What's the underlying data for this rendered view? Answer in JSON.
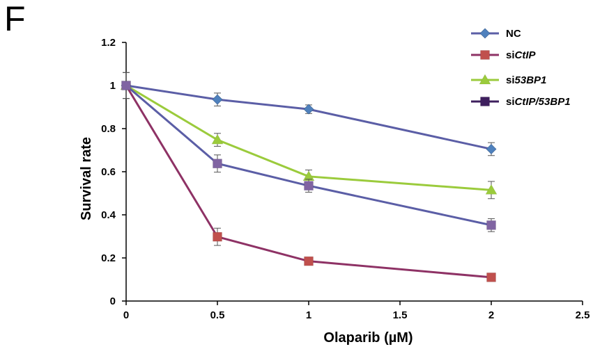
{
  "panel_label": "F",
  "chart_data": {
    "type": "line",
    "xlabel": "Olaparib (µM)",
    "ylabel": "Survival rate",
    "xlim": [
      0,
      2.5
    ],
    "ylim": [
      0,
      1.2
    ],
    "x_ticks": [
      "0",
      "0.5",
      "1",
      "1.5",
      "2",
      "2.5"
    ],
    "y_ticks": [
      "0",
      "0.2",
      "0.4",
      "0.6",
      "0.8",
      "1",
      "1.2"
    ],
    "x": [
      0,
      0.5,
      1,
      2
    ],
    "legend_position": "top-right",
    "series": [
      {
        "name": "NC",
        "prefix": "NC",
        "suffix": "",
        "marker": "diamond",
        "marker_color": "#4f81bd",
        "line_color": "#5b5ea6",
        "values": [
          1.0,
          0.935,
          0.89,
          0.705
        ],
        "errors": [
          0.06,
          0.03,
          0.02,
          0.03
        ]
      },
      {
        "name": "siCtIP",
        "prefix": "si",
        "suffix": "CtIP",
        "marker": "square",
        "marker_color": "#c0504d",
        "line_color": "#8e3265",
        "values": [
          1.0,
          0.298,
          0.185,
          0.11
        ],
        "errors": [
          0.06,
          0.04,
          0.015,
          0.01
        ]
      },
      {
        "name": "si53BP1",
        "prefix": "si",
        "suffix": "53BP1",
        "marker": "triangle",
        "marker_color": "#9bcb3c",
        "line_color": "#9bcb3c",
        "values": [
          1.0,
          0.748,
          0.578,
          0.515
        ],
        "errors": [
          0.06,
          0.03,
          0.03,
          0.04
        ]
      },
      {
        "name": "siCtIP/53BP1",
        "prefix": "si",
        "suffix": "CtIP/53BP1",
        "marker": "square",
        "marker_color": "#8064a2",
        "line_color": "#5b5ea6",
        "legend_marker_color": "#3e1f5e",
        "legend_line_color": "#3e1f5e",
        "values": [
          1.0,
          0.638,
          0.535,
          0.352
        ],
        "errors": [
          0.06,
          0.04,
          0.03,
          0.03
        ]
      }
    ]
  }
}
